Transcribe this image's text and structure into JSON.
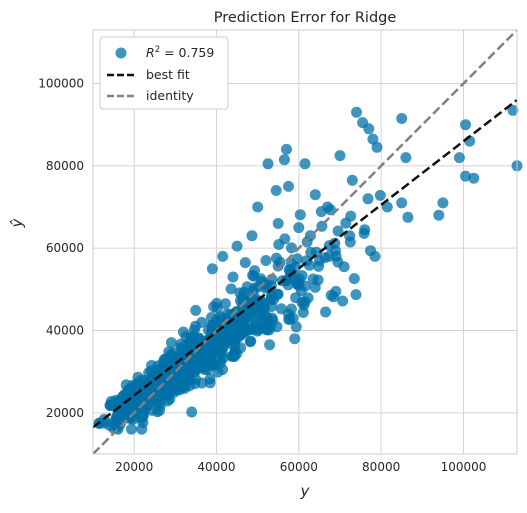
{
  "chart_data": {
    "type": "scatter",
    "title": "Prediction Error for Ridge",
    "xlabel": "y",
    "ylabel": "ŷ",
    "xlim": [
      10000,
      113000
    ],
    "ylim": [
      10000,
      113000
    ],
    "xticks": [
      20000,
      40000,
      60000,
      80000,
      100000
    ],
    "yticks": [
      20000,
      40000,
      60000,
      80000,
      100000
    ],
    "grid": true,
    "legend_position": "top-left",
    "legend": {
      "r2_prefix": "R",
      "r2_exponent": "2",
      "r2_suffix": " = 0.759",
      "best_fit_label": "best fit",
      "identity_label": "identity"
    },
    "colors": {
      "points": "#0072a8",
      "best_fit": "#111111",
      "identity": "#808080",
      "grid": "#d4d4d4",
      "frame": "#cccccc",
      "background": "#ffffff"
    },
    "best_fit": {
      "x": [
        10000,
        113000
      ],
      "y": [
        16500,
        96000
      ]
    },
    "identity": {
      "x": [
        10000,
        113000
      ],
      "y": [
        10000,
        113000
      ]
    },
    "highlighted_points": [
      {
        "x": 74000,
        "y": 93000
      },
      {
        "x": 75500,
        "y": 90500
      },
      {
        "x": 77000,
        "y": 89000
      },
      {
        "x": 78000,
        "y": 86500
      },
      {
        "x": 85000,
        "y": 91500
      },
      {
        "x": 79000,
        "y": 84500
      },
      {
        "x": 112000,
        "y": 93500
      },
      {
        "x": 100500,
        "y": 90000
      },
      {
        "x": 101500,
        "y": 86000
      },
      {
        "x": 99000,
        "y": 82000
      },
      {
        "x": 113000,
        "y": 80000
      },
      {
        "x": 100500,
        "y": 77500
      },
      {
        "x": 102500,
        "y": 77000
      },
      {
        "x": 95000,
        "y": 71000
      },
      {
        "x": 94000,
        "y": 68000
      },
      {
        "x": 86000,
        "y": 82000
      },
      {
        "x": 85000,
        "y": 71000
      },
      {
        "x": 86500,
        "y": 67500
      },
      {
        "x": 57000,
        "y": 84000
      },
      {
        "x": 56500,
        "y": 81500
      },
      {
        "x": 52500,
        "y": 80500
      },
      {
        "x": 61500,
        "y": 80500
      },
      {
        "x": 70000,
        "y": 82500
      },
      {
        "x": 73000,
        "y": 76500
      },
      {
        "x": 50000,
        "y": 70000
      },
      {
        "x": 54500,
        "y": 74000
      },
      {
        "x": 57500,
        "y": 75000
      },
      {
        "x": 64000,
        "y": 73000
      },
      {
        "x": 67000,
        "y": 70000
      },
      {
        "x": 81500,
        "y": 70000
      },
      {
        "x": 76000,
        "y": 64500
      },
      {
        "x": 72500,
        "y": 61500
      },
      {
        "x": 78500,
        "y": 58000
      },
      {
        "x": 71000,
        "y": 55500
      },
      {
        "x": 63500,
        "y": 52500
      },
      {
        "x": 69000,
        "y": 49500
      },
      {
        "x": 61500,
        "y": 47000
      },
      {
        "x": 66500,
        "y": 44500
      },
      {
        "x": 57500,
        "y": 44000
      },
      {
        "x": 59000,
        "y": 38000
      },
      {
        "x": 50500,
        "y": 43000
      },
      {
        "x": 48000,
        "y": 45500
      },
      {
        "x": 52000,
        "y": 57000
      },
      {
        "x": 47000,
        "y": 56500
      },
      {
        "x": 44000,
        "y": 53000
      },
      {
        "x": 41500,
        "y": 58000
      },
      {
        "x": 39000,
        "y": 55000
      },
      {
        "x": 45000,
        "y": 60500
      },
      {
        "x": 60000,
        "y": 65000
      },
      {
        "x": 62000,
        "y": 61500
      },
      {
        "x": 55000,
        "y": 66000
      }
    ],
    "cloud_clusters": [
      {
        "cx": 28000,
        "cy": 28000,
        "sx": 6000,
        "sy": 4500,
        "corr": 0.85,
        "n": 330
      },
      {
        "cx": 38000,
        "cy": 36000,
        "sx": 7000,
        "sy": 5500,
        "corr": 0.8,
        "n": 220
      },
      {
        "cx": 20000,
        "cy": 23000,
        "sx": 3500,
        "sy": 3200,
        "corr": 0.7,
        "n": 110
      },
      {
        "cx": 50000,
        "cy": 45000,
        "sx": 8000,
        "sy": 7500,
        "corr": 0.7,
        "n": 120
      },
      {
        "cx": 62000,
        "cy": 56000,
        "sx": 8000,
        "sy": 8500,
        "corr": 0.5,
        "n": 40
      }
    ]
  }
}
